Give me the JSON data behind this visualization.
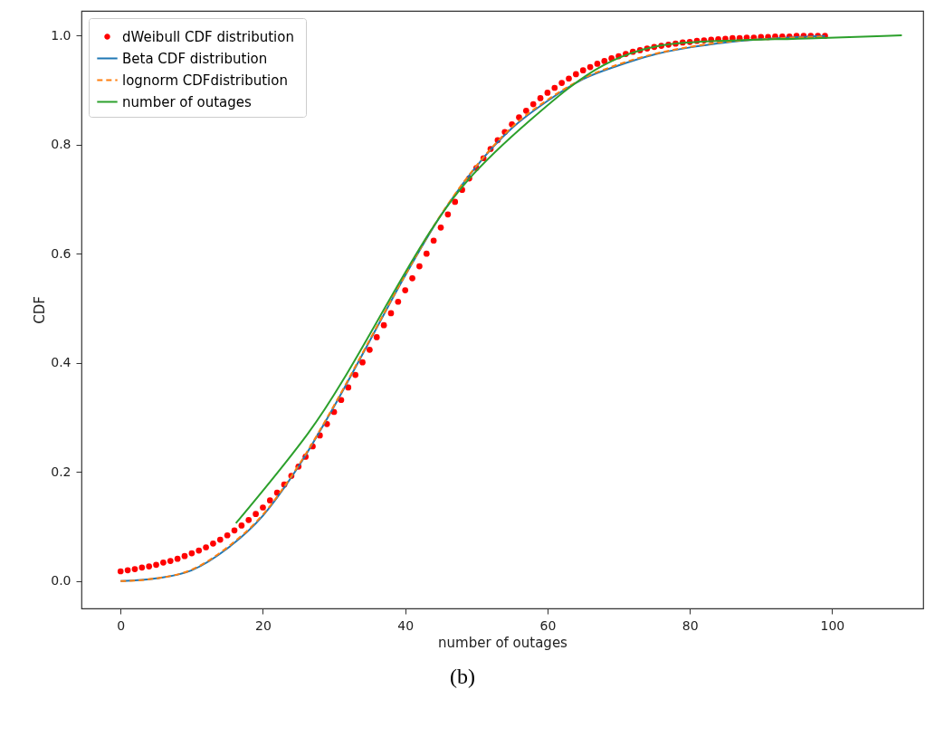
{
  "chart_data": {
    "type": "line",
    "xlabel": "number of outages",
    "ylabel": "CDF",
    "annotations": [
      "(b)"
    ],
    "xlim": [
      -5.5,
      112.8
    ],
    "ylim": [
      -0.05,
      1.045
    ],
    "xticks": [
      0,
      20,
      40,
      60,
      80,
      100
    ],
    "yticks": [
      {
        "value": 0,
        "label": "0.0"
      },
      0.2,
      0.4,
      0.6,
      0.8,
      {
        "value": 1,
        "label": "1.0"
      }
    ],
    "grid": false,
    "legend": "top left",
    "series": [
      {
        "name": "dWeibull CDF  distribution",
        "type": "scatter",
        "marker": "circle",
        "color": "#ff0000",
        "x": [
          0,
          1,
          2,
          3,
          4,
          5,
          6,
          7,
          8,
          9,
          10,
          11,
          12,
          13,
          14,
          15,
          16,
          17,
          18,
          19,
          20,
          21,
          22,
          23,
          24,
          25,
          26,
          27,
          28,
          29,
          30,
          31,
          32,
          33,
          34,
          35,
          36,
          37,
          38,
          39,
          40,
          41,
          42,
          43,
          44,
          45,
          46,
          47,
          48,
          49,
          50,
          51,
          52,
          53,
          54,
          55,
          56,
          57,
          58,
          59,
          60,
          61,
          62,
          63,
          64,
          65,
          66,
          67,
          68,
          69,
          70,
          71,
          72,
          73,
          74,
          75,
          76,
          77,
          78,
          79,
          80,
          81,
          82,
          83,
          84,
          85,
          86,
          87,
          88,
          89,
          90,
          91,
          92,
          93,
          94,
          95,
          96,
          97,
          98,
          99
        ],
        "values": [
          0.018,
          0.02,
          0.022,
          0.025,
          0.027,
          0.03,
          0.034,
          0.037,
          0.041,
          0.046,
          0.051,
          0.056,
          0.062,
          0.069,
          0.076,
          0.084,
          0.093,
          0.102,
          0.112,
          0.123,
          0.135,
          0.148,
          0.162,
          0.177,
          0.193,
          0.21,
          0.228,
          0.247,
          0.267,
          0.288,
          0.31,
          0.332,
          0.355,
          0.378,
          0.401,
          0.424,
          0.447,
          0.469,
          0.491,
          0.512,
          0.533,
          0.555,
          0.577,
          0.6,
          0.624,
          0.648,
          0.672,
          0.695,
          0.717,
          0.738,
          0.757,
          0.775,
          0.792,
          0.808,
          0.823,
          0.837,
          0.85,
          0.862,
          0.874,
          0.885,
          0.895,
          0.904,
          0.913,
          0.921,
          0.929,
          0.936,
          0.942,
          0.948,
          0.953,
          0.958,
          0.962,
          0.966,
          0.97,
          0.973,
          0.976,
          0.979,
          0.981,
          0.983,
          0.985,
          0.987,
          0.988,
          0.99,
          0.991,
          0.992,
          0.993,
          0.994,
          0.995,
          0.995,
          0.996,
          0.996,
          0.997,
          0.997,
          0.998,
          0.998,
          0.998,
          0.999,
          0.999,
          0.999,
          0.999,
          0.999
        ]
      },
      {
        "name": "Beta CDF distribution",
        "type": "line",
        "line_style": "solid",
        "color": "#1f77b4",
        "x": [
          0,
          5,
          10,
          15,
          20,
          25,
          30,
          35,
          40,
          45,
          50,
          55,
          60,
          65,
          70,
          75,
          80,
          85,
          90,
          95,
          99
        ],
        "values": [
          0.0,
          0.005,
          0.02,
          0.06,
          0.12,
          0.21,
          0.32,
          0.44,
          0.56,
          0.67,
          0.76,
          0.83,
          0.88,
          0.92,
          0.945,
          0.965,
          0.978,
          0.987,
          0.993,
          0.997,
          0.999
        ]
      },
      {
        "name": "lognorm CDFdistribution",
        "type": "line",
        "line_style": "dashed",
        "color": "#ff7f0e",
        "x": [
          0,
          5,
          10,
          15,
          20,
          25,
          30,
          35,
          40,
          45,
          50,
          55,
          60,
          65,
          70,
          75,
          80,
          85,
          90,
          95,
          99
        ],
        "values": [
          0.0,
          0.005,
          0.021,
          0.062,
          0.122,
          0.212,
          0.322,
          0.442,
          0.561,
          0.671,
          0.761,
          0.832,
          0.882,
          0.921,
          0.947,
          0.966,
          0.979,
          0.988,
          0.993,
          0.996,
          0.998
        ]
      },
      {
        "name": "number of outages",
        "type": "line",
        "line_style": "solid",
        "color": "#2ca02c",
        "x": [
          16.2,
          26.3,
          48.7,
          57.6,
          67.8,
          78.8,
          97.6,
          109.8
        ],
        "values": [
          0.106,
          0.27,
          0.733,
          0.845,
          0.945,
          0.986,
          0.995,
          1.0
        ]
      }
    ]
  }
}
